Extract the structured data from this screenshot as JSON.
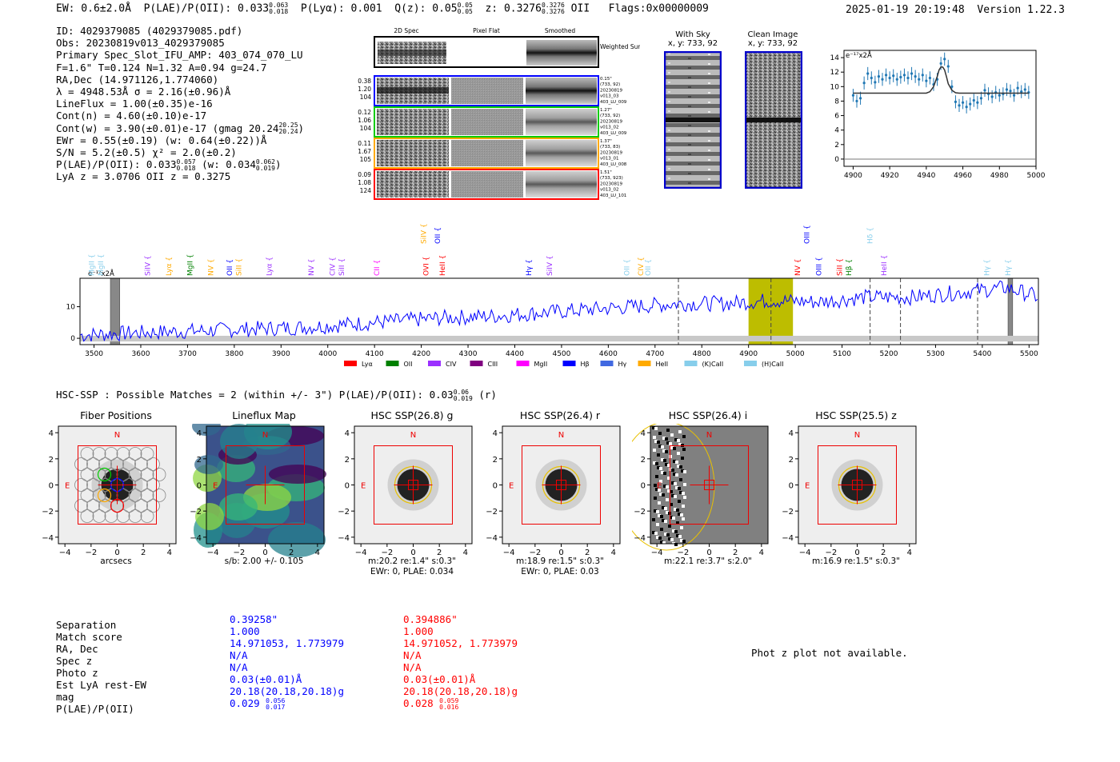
{
  "header": {
    "ew": "EW: 0.6±2.0Å",
    "plae": "P(LAE)/P(OII): 0.033",
    "plae_hi": "0.063",
    "plae_lo": "0.018",
    "plya": "P(Lyα): 0.001",
    "qz": "Q(z): 0.05",
    "qz_hi": "0.05",
    "qz_lo": "0.05",
    "z": "z: 0.3276",
    "z_hi": "0.3276",
    "z_lo": "0.3276",
    "z_line": "OII",
    "flags": "Flags:0x00000009",
    "timestamp": "2025-01-19 20:19:48",
    "version": "Version 1.22.3"
  },
  "info": {
    "id": "ID: 4029379085 (4029379085.pdf)",
    "obs": "Obs: 20230819v013_4029379085",
    "primary": "Primary Spec_Slot_IFU_AMP: 403_074_070_LU",
    "fparams": "F=1.6\"  T=0.124  N=1.32  A=0.94  g=24.7",
    "radec": "RA,Dec (14.971126,1.774060)",
    "lambda": "λ = 4948.53Å  σ = 2.16(±0.96)Å",
    "lineflux": "LineFlux = 1.00(±0.35)e-16",
    "contn": "Cont(n) = 4.60(±0.10)e-17",
    "contw": "Cont(w) = 3.90(±0.01)e-17 (gmag 20.24",
    "contw_hi": "20.25",
    "contw_lo": "20.24",
    "contw_end": ")",
    "ewr": "EWr = 0.55(±0.19) (w: 0.64(±0.22))Å",
    "sn": "S/N = 5.2(±0.5)  χ² = 2.0(±0.2)",
    "plae": "P(LAE)/P(OII): 0.033",
    "plae_hi": "0.057",
    "plae_lo": "0.018",
    "plae_w": "(w: 0.034",
    "plae_w_hi": "0.062",
    "plae_w_lo": "0.019",
    "plae_w_end": ")",
    "lyaz": "LyA z = 3.0706  OII z = 0.3275"
  },
  "cutouts": {
    "col_titles": [
      "2D Spec",
      "Pixel Flat",
      "Smoothed"
    ],
    "weighted_sum": "Weighted Sum",
    "rows": [
      {
        "left": [
          "0.38",
          "1.20",
          "104"
        ],
        "right": [
          "0.15\"",
          "(733, 92)",
          "20230819",
          "v013_03",
          "403_LU_009"
        ],
        "color": "#0000ff"
      },
      {
        "left": [
          "0.12",
          "1.06",
          "104"
        ],
        "right": [
          "1.27\"",
          "(733, 92)",
          "20230819",
          "v013_02",
          "403_LU_009"
        ],
        "color": "#00cc00"
      },
      {
        "left": [
          "0.11",
          "1.67",
          "105"
        ],
        "right": [
          "1.37\"",
          "(733, 83)",
          "20230819",
          "v013_01",
          "403_LU_008"
        ],
        "color": "#ffaa00"
      },
      {
        "left": [
          "0.09",
          "1.08",
          "124"
        ],
        "right": [
          "1.51\"",
          "(733, 923)",
          "20230819",
          "v013_02",
          "403_LU_101"
        ],
        "color": "#ff0000"
      }
    ],
    "with_sky": "With Sky",
    "with_sky_xy": "x, y: 733, 92",
    "clean_image": "Clean Image",
    "clean_image_xy": "x, y: 733, 92"
  },
  "zoom_chart": {
    "ylabel": "e⁻¹⁷x2Å"
  },
  "full_spectrum": {
    "ylabel": "e⁻¹⁷x2Å",
    "top_labels": [
      {
        "text": "SiIV",
        "w": 4210,
        "color": "#ffaa00",
        "row": 1
      },
      {
        "text": "OII",
        "w": 4240,
        "color": "#0000ff",
        "row": 1
      },
      {
        "text": "OIII",
        "w": 5030,
        "color": "#0000ff",
        "row": 1
      },
      {
        "text": "Hδ",
        "w": 5165,
        "color": "#87ceeb",
        "row": 1
      },
      {
        "text": "MgII",
        "w": 3500,
        "color": "#87ceeb",
        "row": 2
      },
      {
        "text": "MgII",
        "w": 3520,
        "color": "#87ceeb",
        "row": 2
      },
      {
        "text": "SiIV",
        "w": 3620,
        "color": "#9b30ff",
        "row": 2
      },
      {
        "text": "Lyα",
        "w": 3665,
        "color": "#ffaa00",
        "row": 2
      },
      {
        "text": "MgII",
        "w": 3710,
        "color": "#008000",
        "row": 2
      },
      {
        "text": "NV",
        "w": 3755,
        "color": "#ffaa00",
        "row": 2
      },
      {
        "text": "OII",
        "w": 3795,
        "color": "#0000ff",
        "row": 2
      },
      {
        "text": "SiII",
        "w": 3815,
        "color": "#ffaa00",
        "row": 2
      },
      {
        "text": "Lyα",
        "w": 3880,
        "color": "#9b30ff",
        "row": 2
      },
      {
        "text": "NV",
        "w": 3970,
        "color": "#9b30ff",
        "row": 2
      },
      {
        "text": "CIV",
        "w": 4015,
        "color": "#9b30ff",
        "row": 2
      },
      {
        "text": "SiII",
        "w": 4035,
        "color": "#9b30ff",
        "row": 2
      },
      {
        "text": "CII",
        "w": 4110,
        "color": "#ff00ff",
        "row": 2
      },
      {
        "text": "OVI",
        "w": 4215,
        "color": "#ff0000",
        "row": 2
      },
      {
        "text": "HeII",
        "w": 4250,
        "color": "#ff0000",
        "row": 2
      },
      {
        "text": "Hγ",
        "w": 4435,
        "color": "#0000ff",
        "row": 2
      },
      {
        "text": "SiIV",
        "w": 4480,
        "color": "#9b30ff",
        "row": 2
      },
      {
        "text": "OII",
        "w": 4645,
        "color": "#87ceeb",
        "row": 2
      },
      {
        "text": "CIV",
        "w": 4675,
        "color": "#ffaa00",
        "row": 2
      },
      {
        "text": "OII",
        "w": 4690,
        "color": "#87ceeb",
        "row": 2
      },
      {
        "text": "NV",
        "w": 5010,
        "color": "#ff0000",
        "row": 2
      },
      {
        "text": "OIII",
        "w": 5055,
        "color": "#0000ff",
        "row": 2
      },
      {
        "text": "SiII",
        "w": 5100,
        "color": "#ff0000",
        "row": 2
      },
      {
        "text": "Hβ",
        "w": 5120,
        "color": "#008000",
        "row": 2
      },
      {
        "text": "HeII",
        "w": 5195,
        "color": "#9b30ff",
        "row": 2
      },
      {
        "text": "Hγ",
        "w": 5415,
        "color": "#87ceeb",
        "row": 2
      },
      {
        "text": "Hγ",
        "w": 5460,
        "color": "#87ceeb",
        "row": 2
      }
    ],
    "legend": [
      {
        "label": "Lyα",
        "color": "#ff0000"
      },
      {
        "label": "OII",
        "color": "#008000"
      },
      {
        "label": "CIV",
        "color": "#9b30ff"
      },
      {
        "label": "CIII",
        "color": "#800080"
      },
      {
        "label": "MgII",
        "color": "#ff00ff"
      },
      {
        "label": "Hβ",
        "color": "#0000ff"
      },
      {
        "label": "Hγ",
        "color": "#4169e1"
      },
      {
        "label": "HeII",
        "color": "#ffaa00"
      },
      {
        "label": "(K)CaII",
        "color": "#87ceeb"
      },
      {
        "label": "(H)CaII",
        "color": "#87ceeb"
      }
    ]
  },
  "hsc": {
    "summary": "HSC-SSP : Possible Matches = 2 (within +/- 3\")  P(LAE)/P(OII): 0.03",
    "summary_hi": "0.06",
    "summary_lo": "0.019",
    "summary_end": "(r)",
    "panels": [
      {
        "title": "Fiber Positions",
        "caption1": "arcsecs",
        "caption2": ""
      },
      {
        "title": "Lineflux Map",
        "caption1": "s/b: 2.00 +/- 0.105",
        "caption2": ""
      },
      {
        "title": "HSC SSP(26.8) g",
        "caption1": "m:20.2  re:1.4\"  s:0.3\"",
        "caption2": "EWr: 0, PLAE: 0.034"
      },
      {
        "title": "HSC SSP(26.4) r",
        "caption1": "m:18.9  re:1.5\"  s:0.3\"",
        "caption2": "EWr: 0, PLAE: 0.03"
      },
      {
        "title": "HSC SSP(26.4) i",
        "caption1": "m:22.1  re:3.7\"  s:2.0\"",
        "caption2": ""
      },
      {
        "title": "HSC SSP(25.5) z",
        "caption1": "m:16.9  re:1.5\"  s:0.3\"",
        "caption2": ""
      }
    ],
    "north_label": "N",
    "east_label": "E"
  },
  "matches": {
    "labels": [
      "Separation",
      "Match score",
      "RA, Dec",
      "Spec z",
      "Photo z",
      "Est LyA rest-EW",
      "mag",
      "P(LAE)/P(OII)"
    ],
    "match1": [
      "0.39258\"",
      "1.000",
      "14.971053, 1.773979",
      "N/A",
      "N/A",
      "0.03(±0.01)Å",
      "20.18(20.18,20.18)g",
      "0.029"
    ],
    "match1_plae_hi": "0.056",
    "match1_plae_lo": "0.017",
    "match2": [
      "0.394886\"",
      "1.000",
      "14.971052, 1.773979",
      "N/A",
      "N/A",
      "0.03(±0.01)Å",
      "20.18(20.18,20.18)g",
      "0.028"
    ],
    "match2_plae_hi": "0.059",
    "match2_plae_lo": "0.016",
    "photz_note": "Phot z plot not available."
  },
  "chart_data": [
    {
      "type": "line",
      "title": "",
      "xlabel": "",
      "ylabel": "e⁻¹⁷x2Å",
      "xlim": [
        4895,
        5000
      ],
      "ylim": [
        -1,
        15
      ],
      "xticks": [
        4900,
        4920,
        4940,
        4960,
        4980,
        5000
      ],
      "yticks": [
        0,
        2,
        4,
        6,
        8,
        10,
        12,
        14
      ],
      "series": [
        {
          "name": "data",
          "style": "errorbar",
          "color": "#1f77b4",
          "x": [
            4900,
            4902,
            4904,
            4906,
            4908,
            4910,
            4912,
            4914,
            4916,
            4918,
            4920,
            4922,
            4924,
            4926,
            4928,
            4930,
            4932,
            4934,
            4936,
            4938,
            4940,
            4942,
            4944,
            4946,
            4948,
            4950,
            4952,
            4954,
            4956,
            4958,
            4960,
            4962,
            4964,
            4966,
            4968,
            4970,
            4972,
            4974,
            4976,
            4978,
            4980,
            4982,
            4984,
            4986,
            4988,
            4990,
            4992,
            4994,
            4996
          ],
          "y": [
            8.8,
            8.0,
            8.4,
            10.5,
            11.8,
            11.2,
            10.6,
            11.4,
            11.0,
            11.6,
            11.2,
            11.5,
            11.0,
            11.3,
            11.6,
            11.2,
            11.8,
            11.4,
            11.0,
            11.6,
            10.8,
            11.2,
            10.3,
            11.0,
            13.2,
            13.8,
            12.8,
            10.0,
            7.9,
            7.4,
            7.8,
            7.2,
            7.6,
            8.1,
            7.8,
            8.4,
            9.5,
            9.0,
            8.6,
            9.2,
            8.8,
            9.0,
            9.6,
            9.4,
            8.8,
            9.8,
            9.3,
            9.6,
            9.2
          ],
          "err": [
            0.9,
            0.9,
            0.9,
            0.9,
            0.9,
            0.9,
            0.9,
            0.9,
            0.9,
            0.9,
            0.9,
            0.9,
            0.9,
            0.9,
            0.9,
            0.9,
            0.9,
            0.9,
            0.9,
            0.9,
            0.9,
            0.9,
            0.9,
            0.9,
            0.9,
            0.9,
            0.9,
            0.9,
            0.9,
            0.9,
            0.9,
            0.9,
            0.9,
            0.9,
            0.9,
            0.9,
            0.9,
            0.9,
            0.9,
            0.9,
            0.9,
            0.9,
            0.9,
            0.9,
            0.9,
            0.9,
            0.9,
            0.9,
            0.9
          ]
        },
        {
          "name": "fit",
          "style": "line",
          "color": "#333333",
          "x": [
            4900,
            4940,
            4942,
            4944,
            4946,
            4947,
            4948,
            4949,
            4950,
            4951,
            4952,
            4954,
            4956,
            4958,
            4996
          ],
          "y": [
            9.1,
            9.1,
            9.3,
            10.0,
            11.4,
            12.3,
            12.7,
            12.7,
            12.3,
            11.4,
            10.4,
            9.5,
            9.15,
            9.1,
            9.1
          ]
        }
      ]
    },
    {
      "type": "line",
      "title": "",
      "xlabel": "",
      "ylabel": "e⁻¹⁷x2Å",
      "xlim": [
        3470,
        5520
      ],
      "ylim": [
        -2,
        19
      ],
      "xticks": [
        3500,
        3600,
        3700,
        3800,
        3900,
        4000,
        4100,
        4200,
        4300,
        4400,
        4500,
        4600,
        4700,
        4800,
        4900,
        5000,
        5100,
        5200,
        5300,
        5400,
        5500
      ],
      "yticks": [
        0,
        10
      ],
      "highlight_band": [
        4900,
        4995
      ],
      "dashed_lines": [
        4750,
        4948,
        5160,
        5225,
        5390
      ],
      "hatched_bands": [
        [
          3535,
          3555
        ],
        [
          5455,
          5465
        ]
      ],
      "series": [
        {
          "name": "spectrum",
          "color": "#0000ff",
          "x": [
            3470,
            3550,
            3650,
            3750,
            3850,
            3950,
            4050,
            4150,
            4250,
            4350,
            4450,
            4550,
            4650,
            4750,
            4850,
            4948,
            5050,
            5150,
            5250,
            5350,
            5450,
            5500,
            5520
          ],
          "y": [
            1,
            1.5,
            2,
            2.5,
            3,
            3.5,
            4.5,
            5.5,
            6.5,
            7,
            8,
            9,
            10,
            11,
            11,
            12,
            11.5,
            13,
            13,
            14.5,
            16,
            14,
            13
          ]
        },
        {
          "name": "noise",
          "color": "#bbbbbb",
          "x": [
            3470,
            5520
          ],
          "y": [
            0,
            0
          ]
        }
      ]
    }
  ]
}
